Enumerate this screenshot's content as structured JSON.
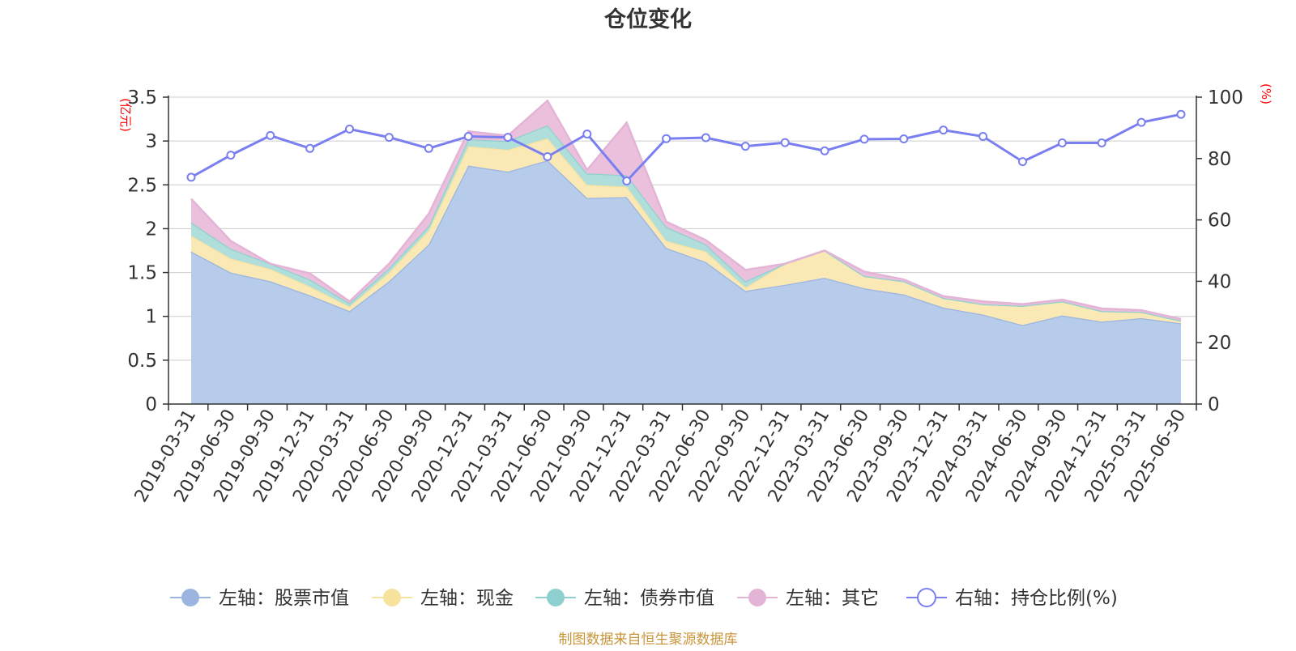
{
  "chart_data": {
    "type": "area",
    "title": "仓位变化",
    "footer": "制图数据来自恒生聚源数据库",
    "left_axis": {
      "unit": "(亿元)",
      "min": 0,
      "max": 3.5,
      "ticks": [
        "0",
        "0.5",
        "1",
        "1.5",
        "2",
        "2.5",
        "3",
        "3.5"
      ]
    },
    "right_axis": {
      "unit": "(%)",
      "min": 0,
      "max": 100,
      "ticks": [
        "0",
        "20",
        "40",
        "60",
        "80",
        "100"
      ]
    },
    "categories": [
      "2019-03-31",
      "2019-06-30",
      "2019-09-30",
      "2019-12-31",
      "2020-03-31",
      "2020-06-30",
      "2020-09-30",
      "2020-12-31",
      "2021-03-31",
      "2021-06-30",
      "2021-09-30",
      "2021-12-31",
      "2022-03-31",
      "2022-06-30",
      "2022-09-30",
      "2022-12-31",
      "2023-03-31",
      "2023-06-30",
      "2023-09-30",
      "2023-12-31",
      "2024-03-31",
      "2024-06-30",
      "2024-09-30",
      "2024-12-31",
      "2025-03-31",
      "2025-06-30"
    ],
    "stacked_series": [
      {
        "name": "左轴：股票市值",
        "color": "#9bb5e0",
        "fill": "#b7cbea",
        "values": [
          1.74,
          1.5,
          1.4,
          1.24,
          1.06,
          1.4,
          1.82,
          2.72,
          2.65,
          2.78,
          2.35,
          2.36,
          1.78,
          1.62,
          1.29,
          1.36,
          1.44,
          1.32,
          1.25,
          1.1,
          1.02,
          0.9,
          1.01,
          0.94,
          0.98,
          0.92
        ]
      },
      {
        "name": "左轴：现金",
        "color": "#f7e29e",
        "fill": "#fae9b4",
        "values": [
          0.18,
          0.16,
          0.14,
          0.1,
          0.05,
          0.1,
          0.16,
          0.22,
          0.25,
          0.25,
          0.15,
          0.12,
          0.08,
          0.12,
          0.04,
          0.24,
          0.31,
          0.14,
          0.15,
          0.11,
          0.12,
          0.22,
          0.16,
          0.12,
          0.07,
          0.03
        ]
      },
      {
        "name": "左轴：债券市值",
        "color": "#8ed0d0",
        "fill": "#b0dedb",
        "values": [
          0.15,
          0.11,
          0.06,
          0.08,
          0.04,
          0.05,
          0.05,
          0.08,
          0.1,
          0.15,
          0.13,
          0.13,
          0.16,
          0.08,
          0.07,
          0.0,
          0.0,
          0.0,
          0.0,
          0.0,
          0.0,
          0.0,
          0.0,
          0.0,
          0.0,
          0.0
        ]
      },
      {
        "name": "左轴：其它",
        "color": "#e4b4d6",
        "fill": "#eac0dc",
        "values": [
          0.27,
          0.09,
          0.0,
          0.07,
          0.02,
          0.05,
          0.14,
          0.09,
          0.06,
          0.28,
          0.04,
          0.6,
          0.06,
          0.05,
          0.13,
          0.0,
          0.0,
          0.05,
          0.02,
          0.02,
          0.03,
          0.02,
          0.02,
          0.03,
          0.02,
          0.02
        ]
      }
    ],
    "line_series": {
      "name": "右轴：持仓比例(%)",
      "color": "#7a7ff0",
      "values": [
        73.9,
        81.1,
        87.5,
        83.3,
        89.6,
        86.9,
        83.3,
        87.2,
        86.9,
        80.6,
        88.0,
        72.7,
        86.5,
        86.8,
        84.0,
        85.2,
        82.5,
        86.3,
        86.4,
        89.3,
        87.2,
        79.0,
        85.1,
        85.1,
        91.8,
        94.4
      ]
    },
    "legend": [
      {
        "label": "左轴：股票市值",
        "color": "#9bb5e0",
        "kind": "filled"
      },
      {
        "label": "左轴：现金",
        "color": "#f7e29e",
        "kind": "filled"
      },
      {
        "label": "左轴：债券市值",
        "color": "#8ed0d0",
        "kind": "filled"
      },
      {
        "label": "左轴：其它",
        "color": "#e4b4d6",
        "kind": "filled"
      },
      {
        "label": "右轴：持仓比例(%)",
        "color": "#7a7ff0",
        "kind": "hollow"
      }
    ],
    "colors": {
      "title": "#333333",
      "axis_unit": "#ff0000",
      "footer": "#c8953a",
      "grid": "#cccccc",
      "axis": "#333333"
    },
    "grid": true,
    "legend_position": "bottom"
  }
}
